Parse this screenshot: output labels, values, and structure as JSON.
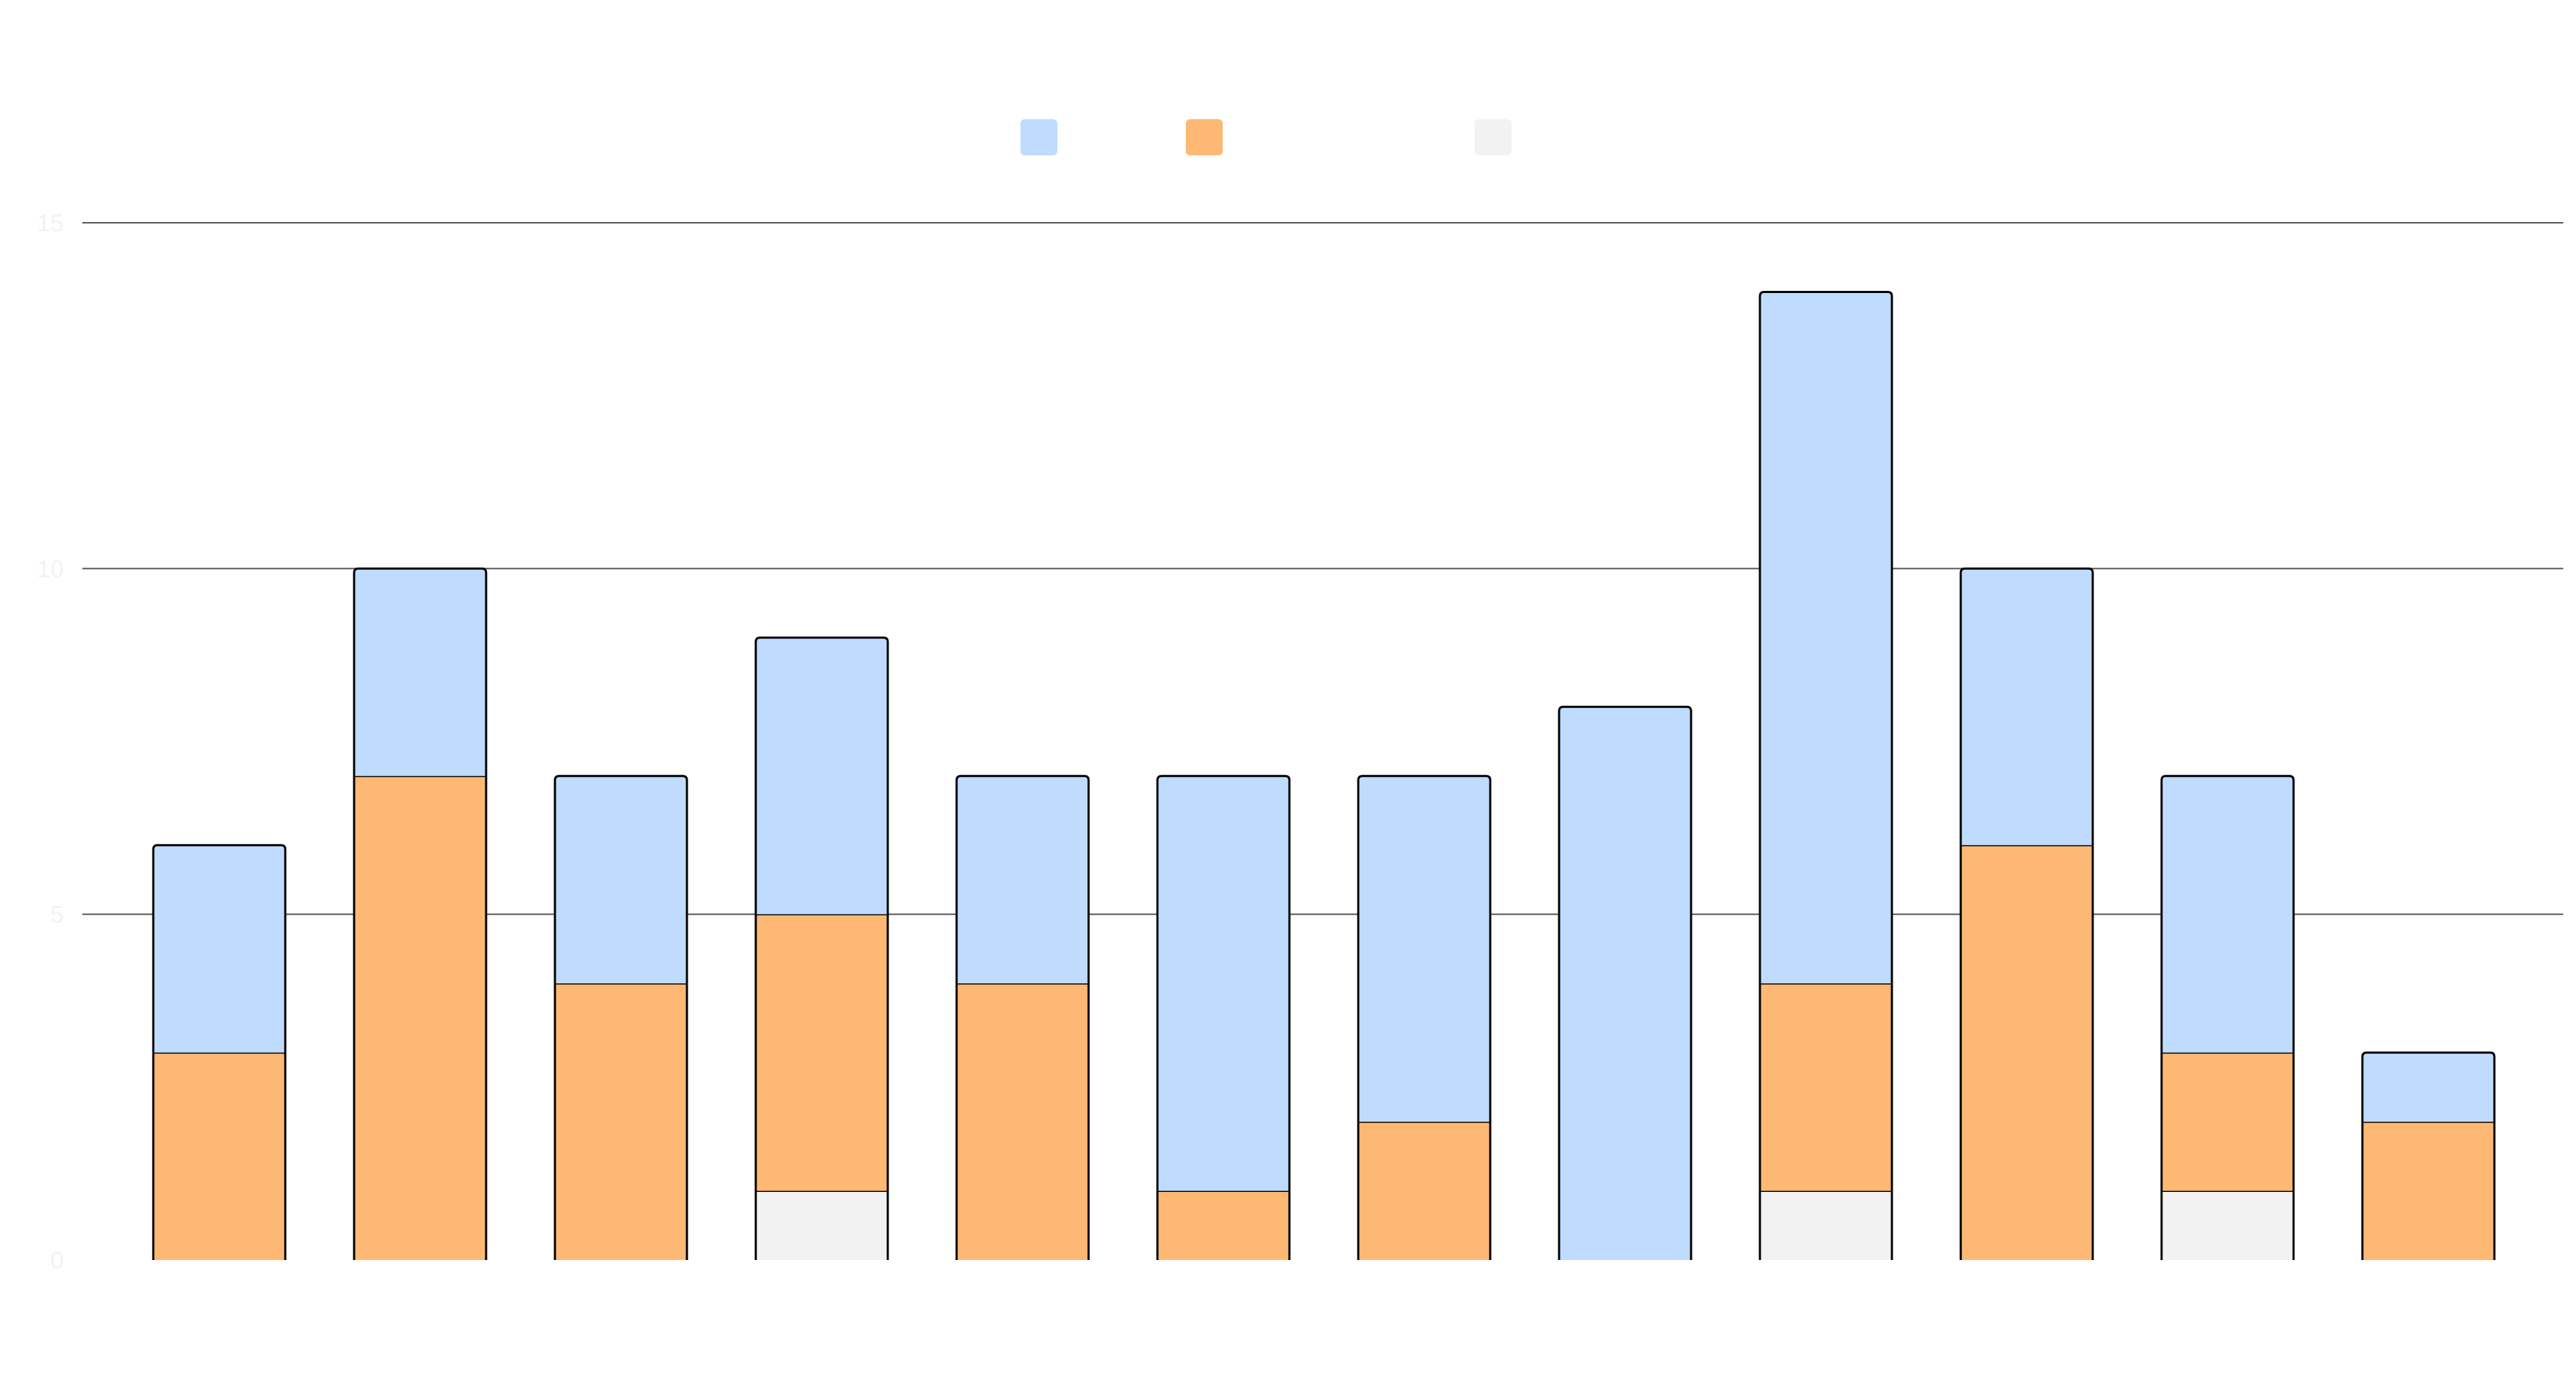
{
  "chart_data": {
    "type": "bar",
    "stacked": true,
    "title": "",
    "xlabel": "",
    "ylabel": "",
    "ylim": [
      0,
      15
    ],
    "yticks": [
      "0",
      "5",
      "10",
      "15"
    ],
    "grid": true,
    "legend_position": "top-center",
    "categories": [
      "",
      "",
      "",
      "",
      "",
      "",
      "",
      "",
      "",
      "",
      "",
      ""
    ],
    "series": [
      {
        "name": "",
        "color": "#f2f2f2",
        "values": [
          0,
          0,
          0,
          1,
          0,
          0,
          0,
          0,
          1,
          0,
          1,
          0
        ]
      },
      {
        "name": "",
        "color": "#fdb974",
        "values": [
          3,
          7,
          4,
          4,
          4,
          1,
          2,
          0,
          3,
          6,
          2,
          2
        ]
      },
      {
        "name": "",
        "color": "#bfdbfe",
        "values": [
          3,
          3,
          3,
          4,
          3,
          6,
          5,
          8,
          10,
          4,
          4,
          1
        ]
      }
    ],
    "legend_order": [
      2,
      1,
      0
    ]
  }
}
